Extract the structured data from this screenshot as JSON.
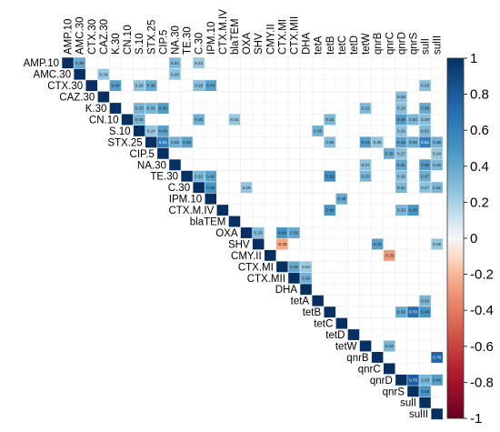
{
  "chart_data": {
    "type": "heatmap",
    "title": "",
    "variables": [
      "AMP.10",
      "AMC.30",
      "CTX.30",
      "CAZ.30",
      "K.30",
      "CN.10",
      "S.10",
      "STX.25",
      "CIP.5",
      "NA.30",
      "TE.30",
      "C.30",
      "IPM.10",
      "CTX.M.IV",
      "blaTEM",
      "OXA",
      "SHV",
      "CMY.II",
      "CTX.MI",
      "CTX.MII",
      "DHA",
      "tetA",
      "tetB",
      "tetC",
      "tetD",
      "tetW",
      "qnrB",
      "qnrC",
      "qnrD",
      "qnrS",
      "sulI",
      "sulII"
    ],
    "layout": "upper-triangle",
    "diagonal_value": 1,
    "colorbar": {
      "range": [
        -1,
        1
      ],
      "ticks": [
        "1",
        "0.8",
        "0.6",
        "0.4",
        "0.2",
        "0",
        "-0.2",
        "-0.4",
        "-0.6",
        "-0.8",
        "-1"
      ],
      "low_color": "#67001f",
      "mid_color": "#f7f7f7",
      "high_color": "#053061",
      "placement": "right"
    },
    "cells": [
      {
        "row": "AMP.10",
        "col": "AMC.30",
        "value": 0.39
      },
      {
        "row": "AMP.10",
        "col": "NA.30",
        "value": 0.31
      },
      {
        "row": "AMP.10",
        "col": "C.30",
        "value": 0.23
      },
      {
        "row": "AMC.30",
        "col": "CAZ.30",
        "value": 0.24
      },
      {
        "row": "AMC.30",
        "col": "NA.30",
        "value": 0.26
      },
      {
        "row": "CTX.30",
        "col": "K.30",
        "value": 0.44
      },
      {
        "row": "CTX.30",
        "col": "S.10",
        "value": 0.26
      },
      {
        "row": "CTX.30",
        "col": "STX.25",
        "value": 0.38
      },
      {
        "row": "CTX.30",
        "col": "C.30",
        "value": 0.29
      },
      {
        "row": "CTX.30",
        "col": "IPM.10",
        "value": 0.43
      },
      {
        "row": "CTX.30",
        "col": "sulI",
        "value": 0.29
      },
      {
        "row": "CAZ.30",
        "col": "qnrD",
        "value": 0.29
      },
      {
        "row": "K.30",
        "col": "S.10",
        "value": 0.33
      },
      {
        "row": "K.30",
        "col": "STX.25",
        "value": 0.33
      },
      {
        "row": "K.30",
        "col": "CIP.5",
        "value": 0.45
      },
      {
        "row": "K.30",
        "col": "tetW",
        "value": 0.31
      },
      {
        "row": "K.30",
        "col": "qnrD",
        "value": 0.28
      },
      {
        "row": "K.30",
        "col": "sulI",
        "value": 0.39
      },
      {
        "row": "CN.10",
        "col": "S.10",
        "value": 0.34
      },
      {
        "row": "CN.10",
        "col": "C.30",
        "value": 0.36
      },
      {
        "row": "CN.10",
        "col": "blaTEM",
        "value": 0.24
      },
      {
        "row": "CN.10",
        "col": "tetB",
        "value": 0.32
      },
      {
        "row": "CN.10",
        "col": "qnrD",
        "value": 0.46
      },
      {
        "row": "CN.10",
        "col": "qnrS",
        "value": 0.32
      },
      {
        "row": "CN.10",
        "col": "sulI",
        "value": 0.29
      },
      {
        "row": "S.10",
        "col": "STX.25",
        "value": 0.24
      },
      {
        "row": "S.10",
        "col": "CIP.5",
        "value": 0.43
      },
      {
        "row": "S.10",
        "col": "tetA",
        "value": 0.35
      },
      {
        "row": "S.10",
        "col": "qnrD",
        "value": 0.26
      },
      {
        "row": "S.10",
        "col": "sulI",
        "value": 0.32
      },
      {
        "row": "STX.25",
        "col": "CIP.5",
        "value": 0.61
      },
      {
        "row": "STX.25",
        "col": "NA.30",
        "value": 0.35
      },
      {
        "row": "STX.25",
        "col": "TE.30",
        "value": 0.43
      },
      {
        "row": "STX.25",
        "col": "tetB",
        "value": 0.3
      },
      {
        "row": "STX.25",
        "col": "tetW",
        "value": 0.44
      },
      {
        "row": "STX.25",
        "col": "qnrB",
        "value": 0.25
      },
      {
        "row": "STX.25",
        "col": "qnrD",
        "value": 0.43
      },
      {
        "row": "STX.25",
        "col": "qnrS",
        "value": 0.35
      },
      {
        "row": "STX.25",
        "col": "sulI",
        "value": 0.61
      },
      {
        "row": "STX.25",
        "col": "sulII",
        "value": 0.35
      },
      {
        "row": "CIP.5",
        "col": "qnrC",
        "value": 0.38
      },
      {
        "row": "CIP.5",
        "col": "qnrD",
        "value": 0.27
      },
      {
        "row": "CIP.5",
        "col": "sulII",
        "value": 0.24
      },
      {
        "row": "NA.30",
        "col": "tetW",
        "value": 0.27
      },
      {
        "row": "NA.30",
        "col": "qnrD",
        "value": 0.41
      },
      {
        "row": "NA.30",
        "col": "sulI",
        "value": 0.46
      },
      {
        "row": "NA.30",
        "col": "sulII",
        "value": 0.32
      },
      {
        "row": "TE.30",
        "col": "C.30",
        "value": 0.32
      },
      {
        "row": "TE.30",
        "col": "IPM.10",
        "value": 0.42
      },
      {
        "row": "TE.30",
        "col": "tetB",
        "value": 0.52
      },
      {
        "row": "TE.30",
        "col": "tetW",
        "value": 0.33
      },
      {
        "row": "TE.30",
        "col": "qnrD",
        "value": 0.28
      },
      {
        "row": "TE.30",
        "col": "sulI",
        "value": 0.37
      },
      {
        "row": "C.30",
        "col": "IPM.10",
        "value": 0.49
      },
      {
        "row": "C.30",
        "col": "OXA",
        "value": 0.25
      },
      {
        "row": "C.30",
        "col": "qnrD",
        "value": 0.32
      },
      {
        "row": "C.30",
        "col": "sulI",
        "value": 0.27
      },
      {
        "row": "C.30",
        "col": "sulII",
        "value": 0.32
      },
      {
        "row": "IPM.10",
        "col": "tetC",
        "value": 0.39
      },
      {
        "row": "CTX.M.IV",
        "col": "tetB",
        "value": 0.49
      },
      {
        "row": "CTX.M.IV",
        "col": "qnrD",
        "value": 0.33
      },
      {
        "row": "CTX.M.IV",
        "col": "qnrS",
        "value": 0.49
      },
      {
        "row": "OXA",
        "col": "SHV",
        "value": 0.29
      },
      {
        "row": "OXA",
        "col": "CTX.MI",
        "value": 0.49
      },
      {
        "row": "OXA",
        "col": "CTX.MII",
        "value": 0.39
      },
      {
        "row": "SHV",
        "col": "CTX.MI",
        "value": -0.25
      },
      {
        "row": "SHV",
        "col": "qnrB",
        "value": 0.43
      },
      {
        "row": "SHV",
        "col": "sulII",
        "value": 0.25
      },
      {
        "row": "CMY.II",
        "col": "qnrC",
        "value": -0.29
      },
      {
        "row": "CTX.MI",
        "col": "CTX.MII",
        "value": 0.39
      },
      {
        "row": "CTX.MI",
        "col": "DHA",
        "value": 0.23
      },
      {
        "row": "CTX.MII",
        "col": "DHA",
        "value": 0.36
      },
      {
        "row": "tetA",
        "col": "sulI",
        "value": 0.33
      },
      {
        "row": "tetB",
        "col": "qnrS",
        "value": 0.7
      },
      {
        "row": "tetB",
        "col": "sulI",
        "value": 0.49
      },
      {
        "row": "tetB",
        "col": "qnrD",
        "value": 0.39
      },
      {
        "row": "tetW",
        "col": "qnrC",
        "value": 0.33
      },
      {
        "row": "qnrB",
        "col": "sulII",
        "value": 0.76
      },
      {
        "row": "qnrD",
        "col": "qnrS",
        "value": 0.79
      },
      {
        "row": "qnrD",
        "col": "sulI",
        "value": 0.33
      },
      {
        "row": "qnrD",
        "col": "sulII",
        "value": 0.45
      },
      {
        "row": "qnrS",
        "col": "sulI",
        "value": 0.49
      }
    ]
  }
}
